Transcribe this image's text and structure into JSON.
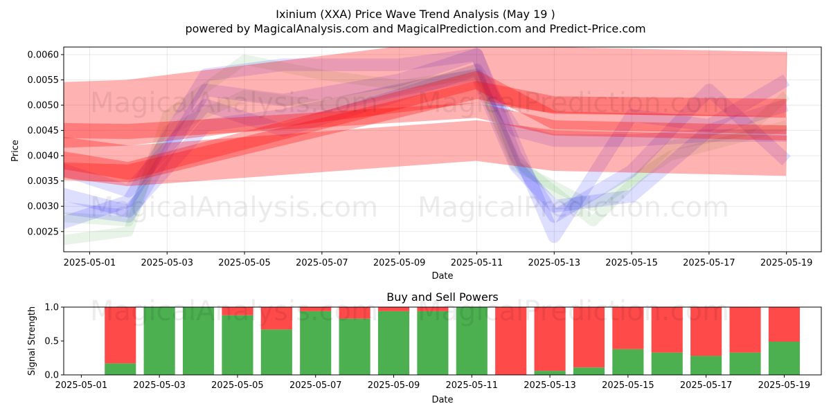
{
  "title_line1": "Ixinium (XXA) Price Wave Trend Analysis (May 19 )",
  "title_line2": "powered by MagicalAnalysis.com and MagicalPrediction.com and Predict-Price.com",
  "watermarks": [
    "MagicalAnalysis.com",
    "MagicalPrediction.com"
  ],
  "colors": {
    "buy": "#4caf50",
    "sell": "#ff4a4a",
    "red_band": "#ff0000",
    "blue_band": "#0000ff",
    "green_band": "#008000"
  },
  "chart_data": [
    {
      "type": "line",
      "title": "",
      "xlabel": "Date",
      "ylabel": "Price",
      "x_ticks": [
        "2025-05-01",
        "2025-05-03",
        "2025-05-05",
        "2025-05-07",
        "2025-05-09",
        "2025-05-11",
        "2025-05-13",
        "2025-05-15",
        "2025-05-17",
        "2025-05-19"
      ],
      "y_ticks": [
        "0.0025",
        "0.0030",
        "0.0035",
        "0.0040",
        "0.0045",
        "0.0050",
        "0.0055",
        "0.0060"
      ],
      "xlim": [
        "2025-04-30",
        "2025-05-20"
      ],
      "ylim": [
        0.0021,
        0.00615
      ],
      "grid": true,
      "red_bands": [
        {
          "x": [
            "2025-04-30",
            "2025-05-02",
            "2025-05-11",
            "2025-05-13",
            "2025-05-19"
          ],
          "y": [
            0.0048,
            0.00485,
            0.0057,
            0.0055,
            0.0054
          ],
          "width": 0.0013
        },
        {
          "x": [
            "2025-04-30",
            "2025-05-02",
            "2025-05-11",
            "2025-05-13",
            "2025-05-19"
          ],
          "y": [
            0.004,
            0.0038,
            0.0043,
            0.0041,
            0.004
          ],
          "width": 0.0008
        },
        {
          "x": [
            "2025-04-30",
            "2025-05-02",
            "2025-05-11",
            "2025-05-13",
            "2025-05-19"
          ],
          "y": [
            0.0045,
            0.00448,
            0.0049,
            0.00455,
            0.00445
          ],
          "width": 0.0003
        },
        {
          "x": [
            "2025-04-30",
            "2025-05-02",
            "2025-05-11",
            "2025-05-13",
            "2025-05-19"
          ],
          "y": [
            0.0037,
            0.00365,
            0.0053,
            0.005,
            0.00495
          ],
          "width": 0.00035
        },
        {
          "x": [
            "2025-04-30",
            "2025-05-02",
            "2025-05-11",
            "2025-05-13",
            "2025-05-19"
          ],
          "y": [
            0.00395,
            0.0037,
            0.0055,
            0.0047,
            0.0046
          ],
          "width": 0.00035
        }
      ],
      "blue_bands": [
        {
          "x": [
            "2025-04-30",
            "2025-05-02",
            "2025-05-04",
            "2025-05-06",
            "2025-05-09",
            "2025-05-11",
            "2025-05-12",
            "2025-05-13",
            "2025-05-15",
            "2025-05-17",
            "2025-05-19"
          ],
          "y": [
            0.003,
            0.0028,
            0.0053,
            0.0051,
            0.0055,
            0.006,
            0.004,
            0.0028,
            0.0037,
            0.0053,
            0.0039
          ],
          "width": 0.00025
        },
        {
          "x": [
            "2025-04-30",
            "2025-05-02",
            "2025-05-04",
            "2025-05-06",
            "2025-05-09",
            "2025-05-11",
            "2025-05-12",
            "2025-05-13",
            "2025-05-15",
            "2025-05-17",
            "2025-05-19"
          ],
          "y": [
            0.0026,
            0.0031,
            0.0056,
            0.0058,
            0.0058,
            0.006,
            0.0042,
            0.0024,
            0.0048,
            0.0046,
            0.0055
          ],
          "width": 0.00025
        },
        {
          "x": [
            "2025-04-30",
            "2025-05-02",
            "2025-05-04",
            "2025-05-06",
            "2025-05-09",
            "2025-05-11",
            "2025-05-12",
            "2025-05-13",
            "2025-05-15",
            "2025-05-17",
            "2025-05-19"
          ],
          "y": [
            0.0038,
            0.0033,
            0.005,
            0.0045,
            0.0052,
            0.0057,
            0.0045,
            0.0043,
            0.0043,
            0.0044,
            0.0044
          ],
          "width": 0.00025
        },
        {
          "x": [
            "2025-04-30",
            "2025-05-02",
            "2025-05-04",
            "2025-05-06",
            "2025-05-09",
            "2025-05-11",
            "2025-05-12",
            "2025-05-13",
            "2025-05-15",
            "2025-05-17",
            "2025-05-19"
          ],
          "y": [
            0.0033,
            0.0029,
            0.0046,
            0.0048,
            0.0053,
            0.0056,
            0.0038,
            0.003,
            0.0032,
            0.0045,
            0.005
          ],
          "width": 0.00025
        }
      ],
      "green_bands": [
        {
          "x": [
            "2025-04-30",
            "2025-05-02",
            "2025-05-03",
            "2025-05-05",
            "2025-05-07",
            "2025-05-09",
            "2025-05-11",
            "2025-05-12",
            "2025-05-14",
            "2025-05-16",
            "2025-05-18",
            "2025-05-19"
          ],
          "y": [
            0.0023,
            0.0025,
            0.0048,
            0.0059,
            0.0056,
            0.0054,
            0.0056,
            0.0039,
            0.0027,
            0.0042,
            0.0045,
            0.0052
          ],
          "width": 0.0002
        },
        {
          "x": [
            "2025-04-30",
            "2025-05-02",
            "2025-05-03",
            "2025-05-05",
            "2025-05-07",
            "2025-05-09",
            "2025-05-11",
            "2025-05-12",
            "2025-05-14",
            "2025-05-16",
            "2025-05-18",
            "2025-05-19"
          ],
          "y": [
            0.0028,
            0.0027,
            0.0045,
            0.0052,
            0.005,
            0.0053,
            0.0057,
            0.0038,
            0.003,
            0.004,
            0.0044,
            0.0046
          ],
          "width": 0.0002
        }
      ]
    },
    {
      "type": "bar",
      "title": "Buy and Sell Powers",
      "xlabel": "Date",
      "ylabel": "Signal Strength",
      "x_ticks": [
        "2025-05-01",
        "2025-05-03",
        "2025-05-05",
        "2025-05-07",
        "2025-05-09",
        "2025-05-11",
        "2025-05-13",
        "2025-05-15",
        "2025-05-17",
        "2025-05-19"
      ],
      "y_ticks": [
        "0.0",
        "0.5",
        "1.0"
      ],
      "xlim": [
        "2025-04-30",
        "2025-05-20"
      ],
      "ylim": [
        0,
        1
      ],
      "categories": [
        "2025-05-02",
        "2025-05-03",
        "2025-05-04",
        "2025-05-05",
        "2025-05-06",
        "2025-05-07",
        "2025-05-08",
        "2025-05-09",
        "2025-05-10",
        "2025-05-11",
        "2025-05-12",
        "2025-05-13",
        "2025-05-14",
        "2025-05-15",
        "2025-05-16",
        "2025-05-17",
        "2025-05-18",
        "2025-05-19"
      ],
      "series": [
        {
          "name": "Buy",
          "values": [
            0.17,
            1.0,
            1.0,
            0.88,
            0.67,
            0.94,
            0.83,
            0.94,
            0.94,
            1.0,
            0.0,
            0.06,
            0.11,
            0.38,
            0.33,
            0.28,
            0.33,
            0.49
          ]
        },
        {
          "name": "Sell",
          "values": [
            0.83,
            0.0,
            0.0,
            0.12,
            0.33,
            0.06,
            0.17,
            0.06,
            0.06,
            0.0,
            1.0,
            0.94,
            0.89,
            0.62,
            0.67,
            0.72,
            0.67,
            0.51
          ]
        }
      ]
    }
  ]
}
